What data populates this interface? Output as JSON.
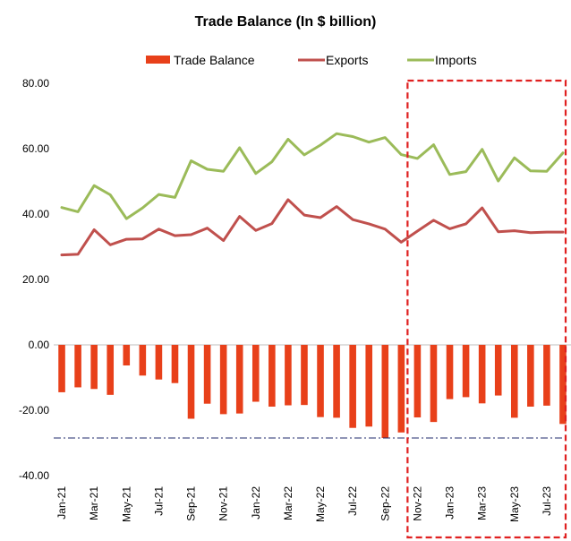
{
  "chart_data": {
    "type": "bar+line",
    "title": "Trade Balance (In $ billion)",
    "categories": [
      "Jan-21",
      "Feb-21",
      "Mar-21",
      "Apr-21",
      "May-21",
      "Jun-21",
      "Jul-21",
      "Aug-21",
      "Sep-21",
      "Oct-21",
      "Nov-21",
      "Dec-21",
      "Jan-22",
      "Feb-22",
      "Mar-22",
      "Apr-22",
      "May-22",
      "Jun-22",
      "Jul-22",
      "Aug-22",
      "Sep-22",
      "Oct-22",
      "Nov-22",
      "Dec-22",
      "Jan-23",
      "Feb-23",
      "Mar-23",
      "Apr-23",
      "May-23",
      "Jun-23",
      "Jul-23",
      "Aug-23"
    ],
    "tick_labels": [
      "Jan-21",
      "Mar-21",
      "May-21",
      "Jul-21",
      "Sep-21",
      "Nov-21",
      "Jan-22",
      "Mar-22",
      "May-22",
      "Jul-22",
      "Sep-22",
      "Nov-22",
      "Jan-23",
      "Mar-23",
      "May-23",
      "Jul-23"
    ],
    "series": [
      {
        "name": "Trade Balance",
        "kind": "bar",
        "color": "#e8401a",
        "values": [
          -14.5,
          -13.0,
          -13.5,
          -15.3,
          -6.3,
          -9.4,
          -10.6,
          -11.7,
          -22.6,
          -18.0,
          -21.2,
          -21.0,
          -17.4,
          -18.9,
          -18.5,
          -18.4,
          -22.1,
          -22.3,
          -25.4,
          -25.0,
          -28.5,
          -26.8,
          -22.2,
          -23.6,
          -16.6,
          -16.0,
          -17.9,
          -15.5,
          -22.3,
          -18.9,
          -18.6,
          -24.2
        ]
      },
      {
        "name": "Exports",
        "kind": "line",
        "color": "#c0504d",
        "values": [
          27.5,
          27.7,
          35.2,
          30.6,
          32.3,
          32.4,
          35.4,
          33.4,
          33.7,
          35.7,
          31.9,
          39.3,
          35.0,
          37.1,
          44.4,
          39.7,
          38.9,
          42.3,
          38.3,
          37.0,
          35.4,
          31.4,
          34.8,
          38.1,
          35.5,
          37.0,
          41.9,
          34.6,
          34.9,
          34.3,
          34.5,
          34.5
        ]
      },
      {
        "name": "Imports",
        "kind": "line",
        "color": "#9bbb59",
        "values": [
          42.0,
          40.7,
          48.7,
          45.9,
          38.6,
          41.9,
          46.0,
          45.1,
          56.3,
          53.7,
          53.1,
          60.3,
          52.4,
          56.0,
          62.9,
          58.1,
          61.1,
          64.6,
          63.7,
          62.0,
          63.4,
          58.2,
          57.0,
          61.2,
          52.1,
          53.0,
          59.8,
          50.1,
          57.2,
          53.2,
          53.1,
          58.7
        ]
      }
    ],
    "ylim": [
      -40,
      80
    ],
    "yticks": [
      "80.00",
      "60.00",
      "40.00",
      "20.00",
      "0.00",
      "-20.00",
      "-40.00"
    ],
    "ytick_values": [
      80,
      60,
      40,
      20,
      0,
      -20,
      -40
    ],
    "reference_line": {
      "value": -28.5,
      "color": "#1f2a6b",
      "style": "dash-dot"
    },
    "highlight": {
      "from": "Nov-22",
      "to": "Aug-23",
      "color": "#e02020",
      "style": "dashed"
    },
    "legend_position": "top",
    "grid": false
  }
}
